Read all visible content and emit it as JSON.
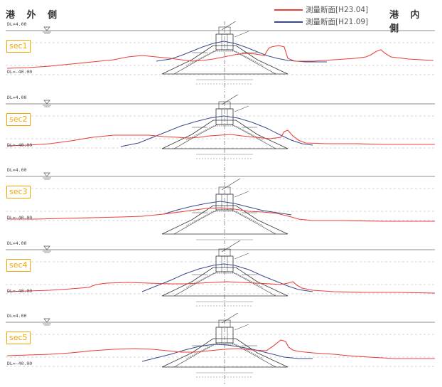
{
  "header": {
    "left_label": "港 外 側",
    "right_label": "港 内 側"
  },
  "legend": [
    {
      "label": "測量断面[H23.04]",
      "color": "#e8413a"
    },
    {
      "label": "測量断面[H21.09]",
      "color": "#3b4a8c"
    }
  ],
  "sections": [
    {
      "label": "sec1",
      "top_level": "DL=4.00",
      "bottom_level": "DL=-40.00"
    },
    {
      "label": "sec2",
      "top_level": "DL=4.00",
      "bottom_level": "DL=-40.00"
    },
    {
      "label": "sec3",
      "top_level": "DL=4.00",
      "bottom_level": "DL=-40.00"
    },
    {
      "label": "sec4",
      "top_level": "DL=4.00",
      "bottom_level": "DL=-40.00"
    },
    {
      "label": "sec5",
      "top_level": "DL=4.00",
      "bottom_level": "DL=-40.00"
    }
  ],
  "colors": {
    "survey_2011": "#e8413a",
    "survey_2009": "#3b4a8c",
    "structure": "#333333",
    "section_label": "#f0a800"
  }
}
